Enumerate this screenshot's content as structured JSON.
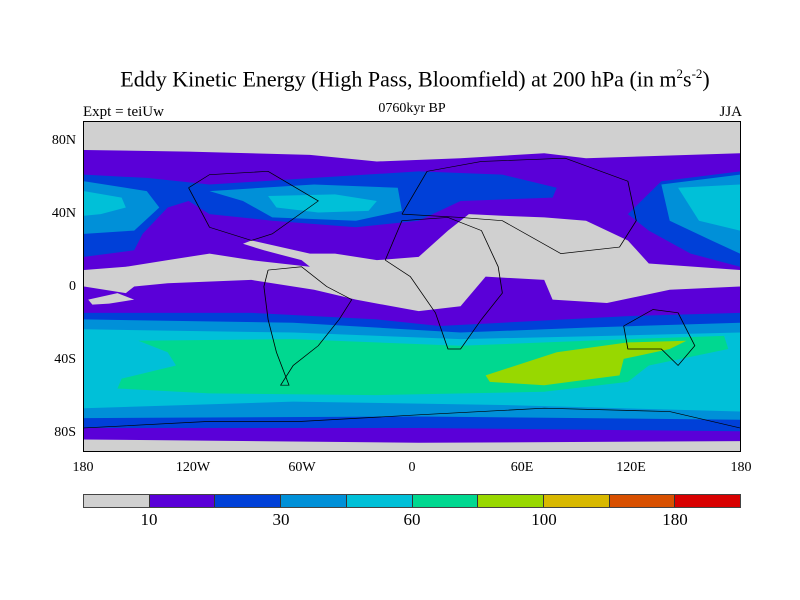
{
  "chart_data": {
    "type": "heatmap",
    "title": "Eddy Kinetic Energy (High Pass, Bloomfield) at 200 hPa (in m",
    "title_sup1": "2",
    "title_mid": "s",
    "title_sup2": "-2",
    "title_end": ")",
    "subtitle": "0760kyr BP",
    "left_label": "Expt = teiUw",
    "right_label": "JJA",
    "y_ticks": [
      "80N",
      "40N",
      "0",
      "40S",
      "80S"
    ],
    "x_ticks": [
      "180",
      "120W",
      "60W",
      "0",
      "60E",
      "120E",
      "180"
    ],
    "xlim": [
      -180,
      180
    ],
    "ylim": [
      -90,
      90
    ],
    "colorbar": {
      "colors": [
        "#d0d0d0",
        "#5a00d8",
        "#0040d8",
        "#0090d8",
        "#00c0d8",
        "#00d890",
        "#98d800",
        "#d8b800",
        "#d85000",
        "#d80000"
      ],
      "labels": [
        "10",
        "30",
        "60",
        "100",
        "180"
      ]
    }
  }
}
